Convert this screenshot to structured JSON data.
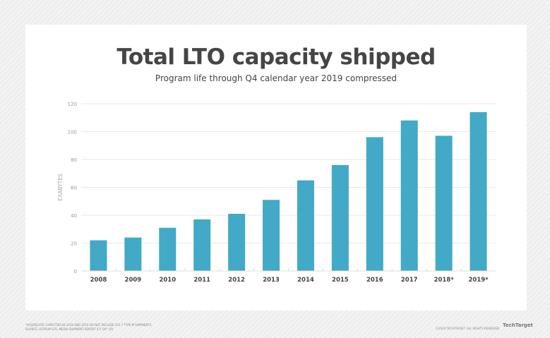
{
  "chart_data": {
    "type": "bar",
    "title": "Total LTO capacity shipped",
    "subtitle": "Program life through Q4 calendar year 2019 compressed",
    "ylabel": "EXABYTES",
    "xlabel": "",
    "ylim": [
      0,
      120
    ],
    "yticks": [
      "0",
      "20",
      "40",
      "60",
      "80",
      "100",
      "120"
    ],
    "categories": [
      "2008",
      "2009",
      "2010",
      "2011",
      "2012",
      "2013",
      "2014",
      "2015",
      "2016",
      "2017",
      "2018*",
      "2019*"
    ],
    "values": [
      22,
      24,
      31,
      37,
      41,
      51,
      65,
      76,
      96,
      108,
      97,
      114
    ],
    "grid": true,
    "bar_color": "#42a9c7"
  },
  "footnotes": [
    "*AGGREGATE CAPACITIES IN 2018 AND 2019 DO NOT INCLUDE LTO-7 TYPE M SHIPMENTS",
    "SOURCE: ULTRIUM LTO, MEDIA SHIPMENT REPORT (CY Q4* 19)"
  ],
  "copyright": "©2020 TECHTARGET. ALL RIGHTS RESERVED",
  "logo": "TechTarget"
}
